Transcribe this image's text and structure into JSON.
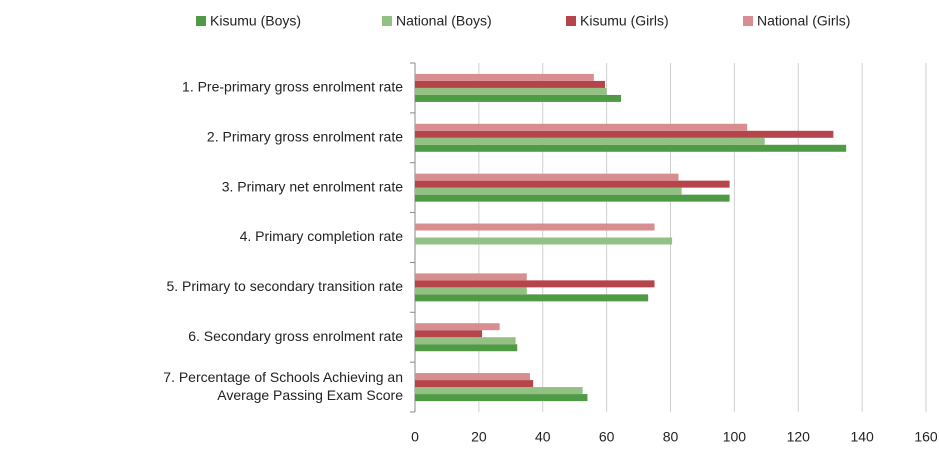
{
  "chart_data": {
    "type": "hbar",
    "categories": [
      "1. Pre-primary gross enrolment rate",
      "2. Primary gross enrolment rate",
      "3. Primary net enrolment rate",
      "4. Primary completion rate",
      "5. Primary to secondary transition rate",
      "6. Secondary gross enrolment rate",
      "7. Percentage of Schools Achieving an Average Passing Exam Score"
    ],
    "series": [
      {
        "name": "Kisumu (Boys)",
        "color": "#4e9a45",
        "values": [
          64.5,
          135,
          98.5,
          null,
          73,
          32,
          54
        ]
      },
      {
        "name": "National (Boys)",
        "color": "#92c183",
        "values": [
          60,
          109.5,
          83.5,
          80.5,
          35,
          31.5,
          52.5
        ]
      },
      {
        "name": "Kisumu (Girls)",
        "color": "#b5454a",
        "values": [
          59.5,
          131,
          98.5,
          null,
          75,
          21,
          37
        ]
      },
      {
        "name": "National (Girls)",
        "color": "#d88d90",
        "values": [
          56,
          104,
          82.5,
          75,
          35,
          26.5,
          36
        ]
      }
    ],
    "xlim": [
      0,
      160
    ],
    "xticks": [
      0,
      20,
      40,
      60,
      80,
      100,
      120,
      140,
      160
    ],
    "grid": true,
    "legend": "top"
  }
}
